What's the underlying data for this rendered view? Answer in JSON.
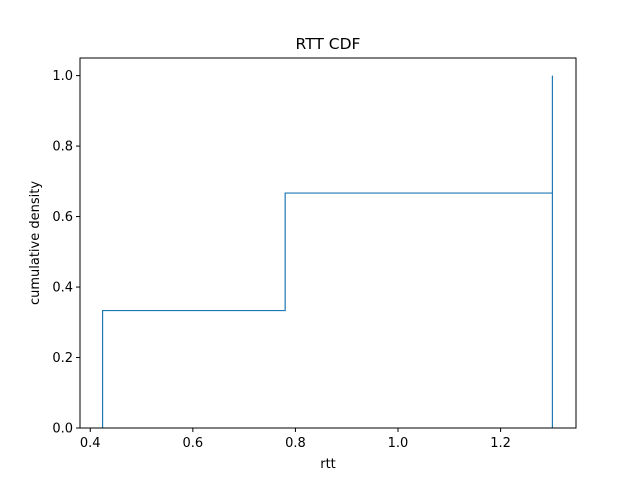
{
  "chart_data": {
    "type": "line",
    "title": "RTT CDF",
    "xlabel": "rtt",
    "ylabel": "cumulative density",
    "xlim": [
      0.38,
      1.347
    ],
    "ylim": [
      0.0,
      1.05
    ],
    "xticks": [
      0.4,
      0.6,
      0.8,
      1.0,
      1.2
    ],
    "xtick_labels": [
      "0.4",
      "0.6",
      "0.8",
      "1.0",
      "1.2"
    ],
    "yticks": [
      0.0,
      0.2,
      0.4,
      0.6,
      0.8,
      1.0
    ],
    "ytick_labels": [
      "0.0",
      "0.2",
      "0.4",
      "0.6",
      "0.8",
      "1.0"
    ],
    "grid": false,
    "legend": "none",
    "series": [
      {
        "style": "step-histogram",
        "color": "#1f77b4",
        "x": [
          0.424,
          0.424,
          0.78,
          0.78,
          1.301,
          1.301,
          1.301,
          1.301
        ],
        "y": [
          0.0,
          0.3333,
          0.3333,
          0.6667,
          0.6667,
          1.0,
          1.0,
          0.0
        ]
      }
    ]
  }
}
